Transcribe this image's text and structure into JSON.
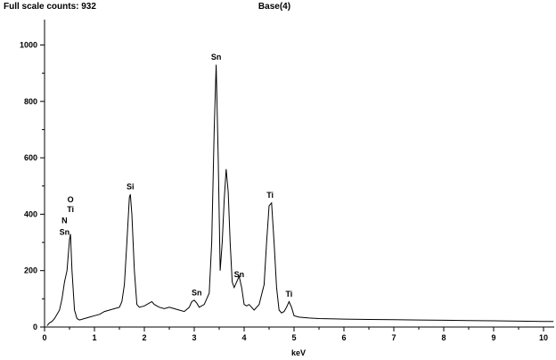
{
  "header": {
    "full_scale": "Full scale counts: 932",
    "sample": "Base(4)"
  },
  "chart_data": {
    "type": "line",
    "title": "",
    "xlabel": "keV",
    "ylabel": "",
    "xlim": [
      0,
      10.2
    ],
    "ylim": [
      0,
      1090
    ],
    "x_ticks": [
      0,
      1,
      2,
      3,
      4,
      5,
      6,
      7,
      8,
      9,
      10
    ],
    "y_ticks": [
      0,
      200,
      400,
      600,
      800,
      1000
    ],
    "grid": false,
    "legend": "none",
    "line_color": "#000000",
    "series": [
      {
        "x": [
          0.05,
          0.1,
          0.15,
          0.2,
          0.25,
          0.3,
          0.35,
          0.4,
          0.45,
          0.5,
          0.52,
          0.55,
          0.6,
          0.65,
          0.7,
          0.8,
          0.9,
          1.0,
          1.1,
          1.2,
          1.3,
          1.4,
          1.5,
          1.55,
          1.6,
          1.65,
          1.7,
          1.72,
          1.75,
          1.8,
          1.85,
          1.9,
          2.0,
          2.1,
          2.15,
          2.2,
          2.3,
          2.4,
          2.5,
          2.6,
          2.7,
          2.8,
          2.9,
          2.95,
          3.0,
          3.05,
          3.1,
          3.2,
          3.3,
          3.35,
          3.4,
          3.44,
          3.48,
          3.52,
          3.56,
          3.6,
          3.64,
          3.68,
          3.72,
          3.76,
          3.8,
          3.85,
          3.9,
          3.95,
          4.0,
          4.05,
          4.1,
          4.15,
          4.2,
          4.3,
          4.4,
          4.45,
          4.5,
          4.55,
          4.6,
          4.65,
          4.7,
          4.75,
          4.8,
          4.85,
          4.9,
          4.95,
          5.0,
          5.1,
          5.3,
          5.5,
          6.0,
          6.5,
          7.0,
          7.5,
          8.0,
          8.5,
          9.0,
          9.5,
          10.0,
          10.2
        ],
        "y": [
          5,
          15,
          20,
          30,
          45,
          60,
          100,
          160,
          200,
          310,
          330,
          200,
          60,
          30,
          25,
          30,
          35,
          40,
          45,
          55,
          60,
          65,
          70,
          90,
          150,
          300,
          460,
          470,
          400,
          200,
          80,
          70,
          75,
          85,
          90,
          80,
          70,
          65,
          70,
          65,
          60,
          55,
          70,
          90,
          95,
          85,
          70,
          80,
          120,
          300,
          700,
          930,
          600,
          200,
          300,
          450,
          560,
          480,
          300,
          160,
          140,
          160,
          180,
          140,
          80,
          75,
          80,
          70,
          60,
          80,
          150,
          300,
          430,
          440,
          300,
          140,
          60,
          50,
          55,
          70,
          90,
          70,
          40,
          35,
          32,
          30,
          28,
          27,
          26,
          25,
          24,
          23,
          22,
          21,
          20,
          20
        ]
      }
    ],
    "peak_labels": [
      {
        "x": 0.52,
        "y": 430,
        "text": "O"
      },
      {
        "x": 0.52,
        "y": 395,
        "text": "Ti"
      },
      {
        "x": 0.4,
        "y": 355,
        "text": "N"
      },
      {
        "x": 0.4,
        "y": 315,
        "text": "Sn"
      },
      {
        "x": 1.72,
        "y": 475,
        "text": "Si"
      },
      {
        "x": 3.05,
        "y": 100,
        "text": "Sn"
      },
      {
        "x": 3.44,
        "y": 935,
        "text": "Sn"
      },
      {
        "x": 3.9,
        "y": 165,
        "text": "Sn"
      },
      {
        "x": 4.52,
        "y": 445,
        "text": "Ti"
      },
      {
        "x": 4.9,
        "y": 95,
        "text": "Ti"
      }
    ]
  }
}
